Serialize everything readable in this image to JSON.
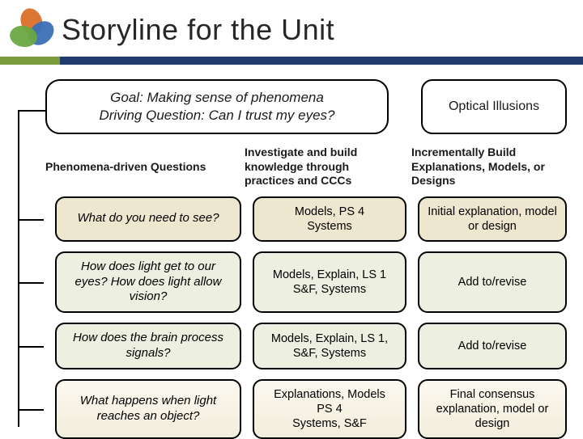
{
  "title": "Storyline for the Unit",
  "logo": {
    "petal_colors": [
      "#d96f2a",
      "#3b6fb5",
      "#6aa842"
    ],
    "ring_color": "#e0e0e0"
  },
  "accent": {
    "short_color": "#7a9a3b",
    "long_color": "#1f3a6b"
  },
  "goal": {
    "line1": "Goal: Making sense of phenomena",
    "line2": "Driving Question: Can I trust my eyes?"
  },
  "top_right_box": "Optical Illusions",
  "column_headers": {
    "c1": "Phenomena-driven Questions",
    "c2": "Investigate and build knowledge through practices and CCCs",
    "c3": "Incrementally Build Explanations, Models, or Designs"
  },
  "rows": [
    {
      "q": "What do you need to see?",
      "mid": "Models, PS 4\nSystems",
      "out": "Initial explanation, model or design",
      "style": "beige"
    },
    {
      "q": "How does light get to our eyes? How does light allow vision?",
      "mid": "Models, Explain, LS 1\nS&F, Systems",
      "out": "Add to/revise",
      "style": "green"
    },
    {
      "q": "How does the brain process signals?",
      "mid": "Models, Explain, LS 1,\nS&F, Systems",
      "out": "Add to/revise",
      "style": "green"
    },
    {
      "q": "What happens when light reaches an object?",
      "mid": "Explanations, Models\nPS 4\nSystems, S&F",
      "out": "Final consensus explanation, model or design",
      "style": "fade"
    }
  ],
  "typography": {
    "title_fontsize": 36,
    "header_fontsize": 14,
    "cell_fontsize": 14.5
  },
  "palette": {
    "beige": "#efe6d0",
    "green": "#edefe0",
    "border": "#000000",
    "text": "#1a1a1a"
  }
}
